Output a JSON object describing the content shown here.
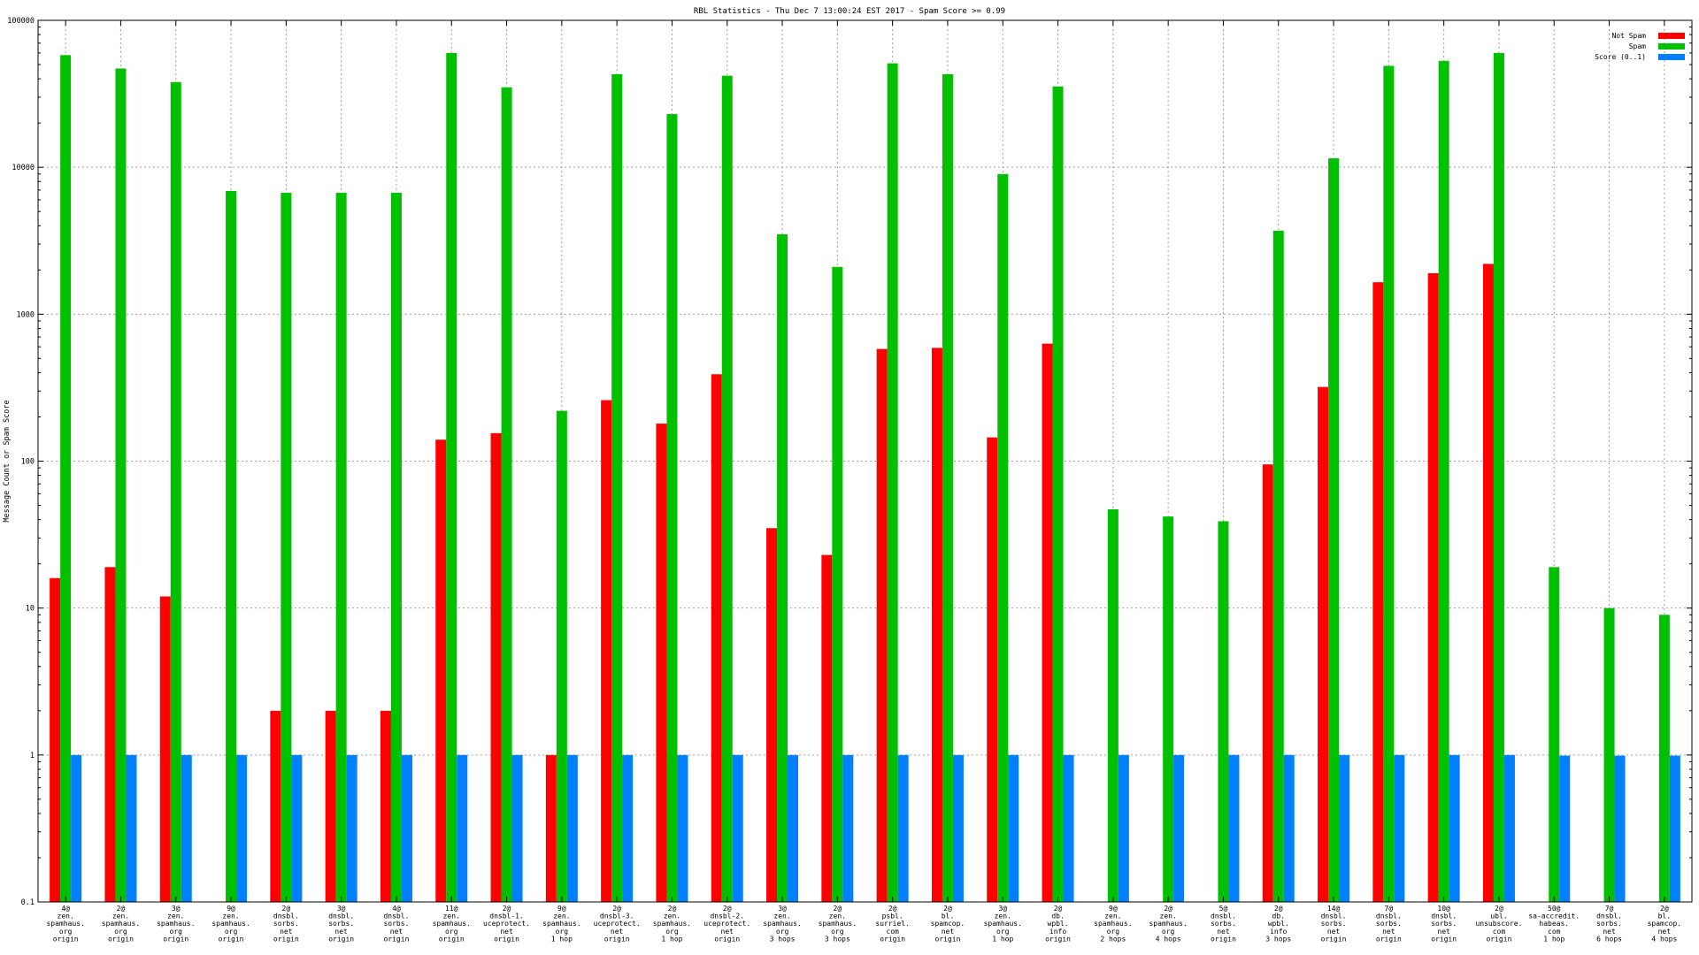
{
  "chart_data": {
    "type": "bar",
    "title": "RBL Statistics - Thu Dec  7 13:00:24 EST 2017 - Spam Score >= 0.99",
    "ylabel": "Message Count or Spam Score",
    "xlabel": "",
    "yscale": "log",
    "ylim": [
      0.1,
      100000
    ],
    "grid": true,
    "legend_position": "top-right",
    "y_ticks": [
      "0.1",
      "1",
      "10",
      "100",
      "1000",
      "10000",
      "100000"
    ],
    "categories": [
      [
        "4@",
        "zen.",
        "spamhaus.",
        "org",
        "origin"
      ],
      [
        "2@",
        "zen.",
        "spamhaus.",
        "org",
        "origin"
      ],
      [
        "3@",
        "zen.",
        "spamhaus.",
        "org",
        "origin"
      ],
      [
        "9@",
        "zen.",
        "spamhaus.",
        "org",
        "origin"
      ],
      [
        "2@",
        "dnsbl.",
        "sorbs.",
        "net",
        "origin"
      ],
      [
        "3@",
        "dnsbl.",
        "sorbs.",
        "net",
        "origin"
      ],
      [
        "4@",
        "dnsbl.",
        "sorbs.",
        "net",
        "origin"
      ],
      [
        "11@",
        "zen.",
        "spamhaus.",
        "org",
        "origin"
      ],
      [
        "2@",
        "dnsbl-1.",
        "uceprotect.",
        "net",
        "origin"
      ],
      [
        "9@",
        "zen.",
        "spamhaus.",
        "org",
        "1 hop"
      ],
      [
        "2@",
        "dnsbl-3.",
        "uceprotect.",
        "net",
        "origin"
      ],
      [
        "2@",
        "zen.",
        "spamhaus.",
        "org",
        "1 hop"
      ],
      [
        "2@",
        "dnsbl-2.",
        "uceprotect.",
        "net",
        "origin"
      ],
      [
        "3@",
        "zen.",
        "spamhaus.",
        "org",
        "3 hops"
      ],
      [
        "2@",
        "zen.",
        "spamhaus.",
        "org",
        "3 hops"
      ],
      [
        "2@",
        "psbl.",
        "surriel.",
        "com",
        "origin"
      ],
      [
        "2@",
        "bl.",
        "spamcop.",
        "net",
        "origin"
      ],
      [
        "3@",
        "zen.",
        "spamhaus.",
        "org",
        "1 hop"
      ],
      [
        "2@",
        "db.",
        "wpbl.",
        "info",
        "origin"
      ],
      [
        "9@",
        "zen.",
        "spamhaus.",
        "org",
        "2 hops"
      ],
      [
        "2@",
        "zen.",
        "spamhaus.",
        "org",
        "4 hops"
      ],
      [
        "5@",
        "dnsbl.",
        "sorbs.",
        "net",
        "origin"
      ],
      [
        "2@",
        "db.",
        "wpbl.",
        "info",
        "3 hops"
      ],
      [
        "14@",
        "dnsbl.",
        "sorbs.",
        "net",
        "origin"
      ],
      [
        "7@",
        "dnsbl.",
        "sorbs.",
        "net",
        "origin"
      ],
      [
        "10@",
        "dnsbl.",
        "sorbs.",
        "net",
        "origin"
      ],
      [
        "2@",
        "ubl.",
        "unsubscore.",
        "com",
        "origin"
      ],
      [
        "50@",
        "sa-accredit.",
        "habeas.",
        "com",
        "1 hop"
      ],
      [
        "7@",
        "dnsbl.",
        "sorbs.",
        "net",
        "6 hops"
      ],
      [
        "2@",
        "bl.",
        "spamcop.",
        "net",
        "4 hops"
      ]
    ],
    "series": [
      {
        "name": "Not Spam",
        "color": "#ff0000",
        "values": [
          16,
          19,
          12,
          null,
          2,
          2,
          2,
          140,
          155,
          1,
          260,
          180,
          390,
          35,
          23,
          580,
          590,
          145,
          630,
          null,
          null,
          null,
          95,
          320,
          1650,
          1900,
          2200,
          null,
          null,
          null
        ]
      },
      {
        "name": "Spam",
        "color": "#00c000",
        "values": [
          58000,
          47000,
          38000,
          6900,
          6700,
          6700,
          6700,
          60000,
          35000,
          220,
          43000,
          23000,
          42000,
          3500,
          2100,
          51000,
          43000,
          9000,
          35500,
          47,
          42,
          39,
          3700,
          11500,
          49000,
          53000,
          60000,
          19,
          10,
          9
        ]
      },
      {
        "name": "Score (0..1)",
        "color": "#0080ff",
        "values": [
          1,
          1,
          1,
          1,
          1,
          1,
          1,
          1,
          1,
          1,
          1,
          1,
          1,
          1,
          1,
          1,
          1,
          1,
          1,
          1,
          1,
          1,
          1,
          1,
          1,
          1,
          1,
          0.99,
          0.99,
          0.99
        ]
      }
    ]
  }
}
